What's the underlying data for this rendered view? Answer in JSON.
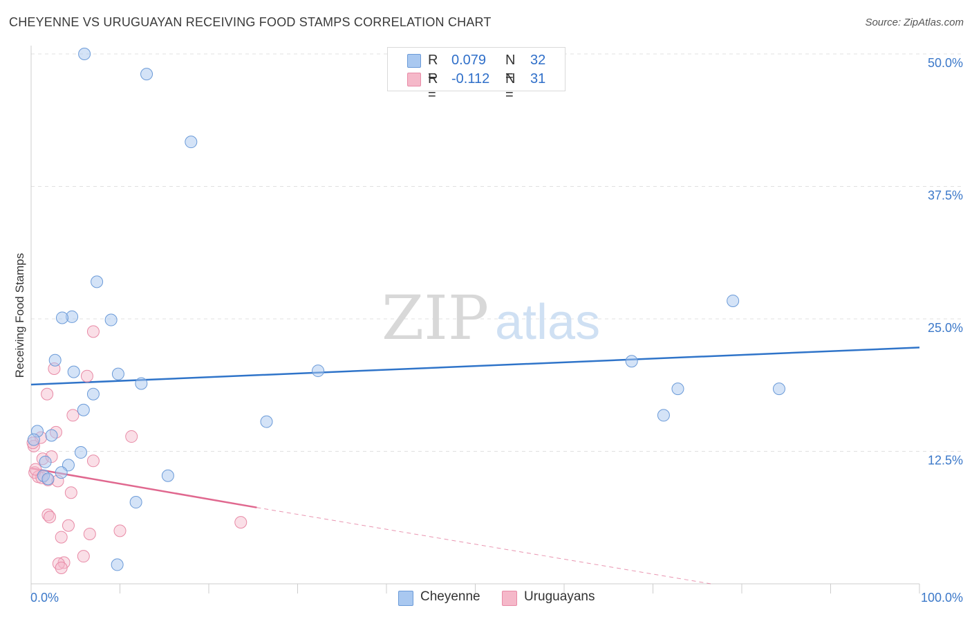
{
  "header": {
    "title": "CHEYENNE VS URUGUAYAN RECEIVING FOOD STAMPS CORRELATION CHART",
    "source": "Source: ZipAtlas.com"
  },
  "legend": {
    "rows": [
      {
        "r_label": "R =",
        "r_value": "0.079",
        "n_label": "N =",
        "n_value": "32",
        "color": "#a9c8f0"
      },
      {
        "r_label": "R =",
        "r_value": "-0.112",
        "n_label": "N =",
        "n_value": "31",
        "color": "#f5b8c9"
      }
    ]
  },
  "bottom_legend": {
    "cheyenne": "Cheyenne",
    "uruguayans": "Uruguayans"
  },
  "watermark": {
    "zip": "ZIP",
    "atlas": "atlas"
  },
  "colors": {
    "cheyenne_fill": "#a9c8f0",
    "cheyenne_stroke": "#6a9ad8",
    "cheyenne_line": "#2f74c9",
    "uruguayans_fill": "#f5b8c9",
    "uruguayans_stroke": "#e88aa6",
    "uruguayans_line": "#e0688f",
    "tick_label": "#3b78c9"
  },
  "chart_data": {
    "type": "scatter",
    "title": "CHEYENNE VS URUGUAYAN RECEIVING FOOD STAMPS CORRELATION CHART",
    "xlabel": "",
    "ylabel": "Receiving Food Stamps",
    "xlim": [
      0,
      100
    ],
    "ylim": [
      0,
      50
    ],
    "x_tick_labels": [
      "0.0%",
      "100.0%"
    ],
    "y_ticks": [
      12.5,
      25.0,
      37.5,
      50.0
    ],
    "y_tick_labels": [
      "12.5%",
      "25.0%",
      "37.5%",
      "50.0%"
    ],
    "grid": true,
    "legend_position": "top-center",
    "series": [
      {
        "name": "Cheyenne",
        "points": [
          [
            6,
            50.0
          ],
          [
            13,
            48.1
          ],
          [
            18,
            41.7
          ],
          [
            7.4,
            28.5
          ],
          [
            4.6,
            25.2
          ],
          [
            3.5,
            25.1
          ],
          [
            9,
            24.9
          ],
          [
            2.7,
            21.1
          ],
          [
            4.8,
            20.0
          ],
          [
            9.8,
            19.8
          ],
          [
            12.4,
            18.9
          ],
          [
            7,
            17.9
          ],
          [
            5.9,
            16.4
          ],
          [
            0.7,
            14.4
          ],
          [
            2.3,
            14.0
          ],
          [
            0.3,
            13.6
          ],
          [
            5.6,
            12.4
          ],
          [
            1.6,
            11.5
          ],
          [
            4.2,
            11.2
          ],
          [
            3.4,
            10.5
          ],
          [
            1.4,
            10.2
          ],
          [
            1.9,
            9.9
          ],
          [
            15.4,
            10.2
          ],
          [
            11.8,
            7.7
          ],
          [
            26.5,
            15.3
          ],
          [
            32.3,
            20.1
          ],
          [
            67.6,
            21.0
          ],
          [
            71.2,
            15.9
          ],
          [
            72.8,
            18.4
          ],
          [
            79,
            26.7
          ],
          [
            84.2,
            18.4
          ],
          [
            9.7,
            1.8
          ]
        ],
        "trend": {
          "x": [
            0,
            100
          ],
          "y": [
            18.8,
            22.3
          ]
        }
      },
      {
        "name": "Uruguayans",
        "points": [
          [
            0.3,
            13.0
          ],
          [
            1.1,
            13.8
          ],
          [
            2.8,
            14.3
          ],
          [
            1.3,
            11.8
          ],
          [
            2.3,
            12.0
          ],
          [
            0.4,
            10.5
          ],
          [
            0.8,
            10.1
          ],
          [
            1.2,
            10.0
          ],
          [
            1.9,
            9.8
          ],
          [
            4.5,
            8.6
          ],
          [
            3,
            9.7
          ],
          [
            7,
            11.6
          ],
          [
            11.3,
            13.9
          ],
          [
            7,
            23.8
          ],
          [
            2.6,
            20.3
          ],
          [
            6.3,
            19.6
          ],
          [
            1.8,
            17.9
          ],
          [
            4.7,
            15.9
          ],
          [
            1.9,
            6.5
          ],
          [
            2.1,
            6.3
          ],
          [
            4.2,
            5.5
          ],
          [
            6.6,
            4.7
          ],
          [
            3.4,
            4.4
          ],
          [
            10,
            5.0
          ],
          [
            23.6,
            5.8
          ],
          [
            5.9,
            2.6
          ],
          [
            3.7,
            2.0
          ],
          [
            3.1,
            1.9
          ],
          [
            3.4,
            1.5
          ],
          [
            0.5,
            10.8
          ],
          [
            0.2,
            13.3
          ]
        ],
        "trend": {
          "x": [
            0,
            25.4
          ],
          "y": [
            10.9,
            7.2
          ],
          "dashed_extension": {
            "x": [
              25.4,
              76.5
            ],
            "y": [
              7.2,
              0
            ]
          }
        }
      }
    ]
  }
}
